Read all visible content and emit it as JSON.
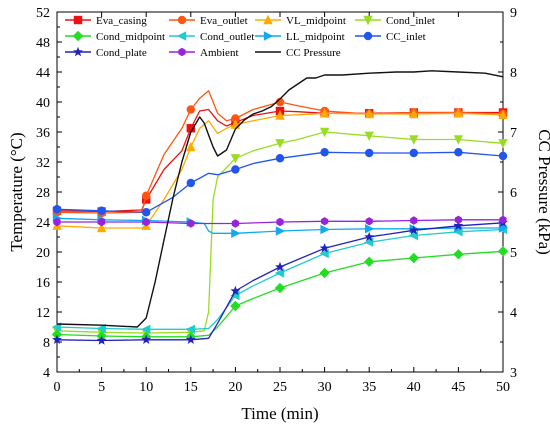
{
  "chart_data": {
    "type": "line",
    "xlabel": "Time (min)",
    "ylabel_left": "Temperature (°C)",
    "ylabel_right": "CC Pressure (kPa)",
    "xlim": [
      0,
      50
    ],
    "ylim_left": [
      4,
      52
    ],
    "ylim_right": [
      3,
      9
    ],
    "x_ticks": [
      0,
      5,
      10,
      15,
      20,
      25,
      30,
      35,
      40,
      45,
      50
    ],
    "y_left_ticks": [
      4,
      8,
      12,
      16,
      20,
      24,
      28,
      32,
      36,
      40,
      44,
      48,
      52
    ],
    "y_right_ticks": [
      3,
      4,
      5,
      6,
      7,
      8,
      9
    ],
    "grid": false,
    "legend_position": "top",
    "series": [
      {
        "name": "Eva_casing",
        "axis": "left",
        "color": "#ee1111",
        "marker": "square",
        "x": [
          0,
          5,
          9.5,
          10,
          12,
          14,
          15,
          16,
          17,
          18,
          19,
          20,
          22,
          25,
          27,
          30,
          35,
          40,
          45,
          50
        ],
        "y": [
          25.5,
          25.4,
          25.6,
          27.0,
          31.0,
          33.5,
          36.5,
          38.8,
          39.0,
          37.5,
          36.8,
          37.3,
          38.2,
          38.8,
          38.7,
          38.5,
          38.5,
          38.6,
          38.6,
          38.6
        ]
      },
      {
        "name": "Eva_outlet",
        "axis": "left",
        "color": "#ff5511",
        "marker": "circle",
        "x": [
          0,
          5,
          9.5,
          10,
          12,
          14,
          15,
          16,
          17,
          18,
          19,
          20,
          22,
          25,
          27,
          30,
          35,
          40,
          45,
          50
        ],
        "y": [
          25.3,
          25.2,
          25.3,
          27.5,
          33.0,
          36.5,
          39.0,
          40.5,
          41.5,
          38.5,
          37.5,
          37.8,
          39.0,
          40.0,
          39.5,
          38.8,
          38.4,
          38.6,
          38.6,
          38.4
        ]
      },
      {
        "name": "VL_midpoint",
        "axis": "left",
        "color": "#ffaa00",
        "marker": "triangle-up",
        "x": [
          0,
          5,
          9.5,
          10,
          12,
          14,
          15,
          16,
          17,
          18,
          19,
          20,
          22,
          25,
          27,
          30,
          35,
          40,
          45,
          50
        ],
        "y": [
          23.5,
          23.2,
          23.2,
          23.5,
          27.0,
          31.0,
          34.0,
          36.5,
          37.5,
          35.8,
          36.5,
          37.0,
          37.5,
          38.2,
          38.3,
          38.5,
          38.4,
          38.4,
          38.5,
          38.3
        ]
      },
      {
        "name": "Cond_inlet",
        "axis": "left",
        "color": "#99dd22",
        "marker": "triangle-down",
        "x": [
          0,
          5,
          10,
          15,
          16.5,
          17,
          17.5,
          18,
          20,
          22,
          25,
          27,
          30,
          35,
          40,
          45,
          50
        ],
        "y": [
          9.5,
          9.3,
          9.2,
          9.3,
          9.5,
          12.0,
          27.0,
          30.0,
          32.5,
          33.5,
          34.5,
          35.0,
          36.0,
          35.5,
          35.0,
          35.0,
          34.5
        ]
      },
      {
        "name": "Cond_midpoint",
        "axis": "left",
        "color": "#22dd22",
        "marker": "diamond",
        "x": [
          0,
          5,
          10,
          15,
          17,
          18,
          20,
          22,
          25,
          30,
          35,
          40,
          45,
          50
        ],
        "y": [
          9.0,
          8.8,
          8.7,
          8.7,
          8.9,
          10.0,
          12.8,
          13.8,
          15.2,
          17.2,
          18.7,
          19.2,
          19.7,
          20.1
        ]
      },
      {
        "name": "Cond_outlet",
        "axis": "left",
        "color": "#22cccc",
        "marker": "triangle-left",
        "x": [
          0,
          5,
          10,
          15,
          17,
          18,
          20,
          22,
          25,
          30,
          35,
          40,
          45,
          50
        ],
        "y": [
          10.0,
          9.8,
          9.7,
          9.7,
          9.8,
          11.0,
          14.2,
          15.5,
          17.2,
          19.8,
          21.3,
          22.2,
          22.7,
          23.0
        ]
      },
      {
        "name": "LL_midpoint",
        "axis": "left",
        "color": "#11aaee",
        "marker": "triangle-right",
        "x": [
          0,
          5,
          10,
          15,
          16.5,
          17,
          17.5,
          20,
          25,
          30,
          35,
          40,
          45,
          50
        ],
        "y": [
          24.5,
          24.3,
          24.2,
          24.0,
          23.8,
          22.8,
          22.5,
          22.5,
          22.8,
          23.0,
          23.1,
          23.1,
          23.2,
          23.2
        ]
      },
      {
        "name": "CC_inlet",
        "axis": "left",
        "color": "#2255ee",
        "marker": "circle",
        "x": [
          0,
          5,
          10,
          13,
          15,
          17,
          18,
          20,
          22,
          25,
          30,
          35,
          40,
          45,
          50
        ],
        "y": [
          25.7,
          25.5,
          25.3,
          27.3,
          29.2,
          30.5,
          30.3,
          31.0,
          31.8,
          32.5,
          33.3,
          33.2,
          33.2,
          33.3,
          32.8
        ]
      },
      {
        "name": "Cond_plate",
        "axis": "left",
        "color": "#2222bb",
        "marker": "star",
        "x": [
          0,
          5,
          10,
          15,
          17,
          18,
          20,
          22,
          25,
          30,
          35,
          40,
          45,
          50
        ],
        "y": [
          8.3,
          8.2,
          8.3,
          8.3,
          8.5,
          10.5,
          14.8,
          16.2,
          18.0,
          20.5,
          22.0,
          22.9,
          23.5,
          23.9
        ]
      },
      {
        "name": "Ambient",
        "axis": "left",
        "color": "#9922dd",
        "marker": "hexagon",
        "x": [
          0,
          5,
          10,
          15,
          20,
          25,
          30,
          35,
          40,
          45,
          50
        ],
        "y": [
          24.0,
          24.0,
          24.0,
          23.8,
          23.8,
          24.0,
          24.1,
          24.1,
          24.2,
          24.3,
          24.3
        ]
      },
      {
        "name": "CC Pressure",
        "axis": "right",
        "color": "#111111",
        "marker": "none",
        "x": [
          0,
          5,
          9,
          10,
          11,
          12,
          13,
          14,
          15,
          16,
          16.5,
          17,
          17.5,
          18,
          19,
          20,
          21,
          22,
          23,
          24,
          25,
          26,
          27,
          28,
          29,
          30,
          32,
          35,
          38,
          40,
          42,
          45,
          48,
          50
        ],
        "y": [
          3.8,
          3.78,
          3.75,
          3.9,
          4.5,
          5.2,
          5.9,
          6.5,
          7.0,
          7.25,
          7.15,
          6.95,
          6.75,
          6.6,
          6.7,
          7.05,
          7.2,
          7.3,
          7.35,
          7.42,
          7.55,
          7.7,
          7.8,
          7.9,
          7.9,
          7.95,
          7.95,
          7.98,
          8.0,
          8.0,
          8.02,
          8.0,
          7.98,
          7.92
        ]
      }
    ]
  }
}
